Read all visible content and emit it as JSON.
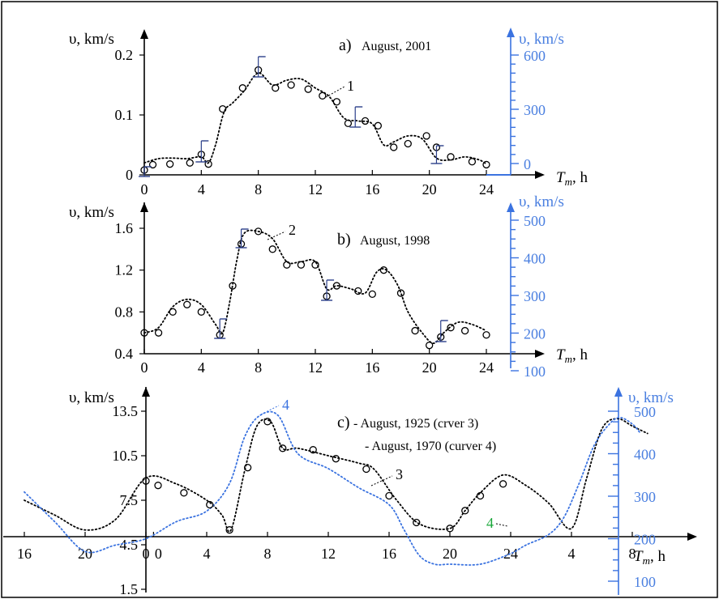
{
  "chart_data": [
    {
      "type": "scatter",
      "panel": "a",
      "title_letter": "a)",
      "title_text": "August, 2001",
      "ylabel": "υ, km/s",
      "ylabel_right": "υ, km/s",
      "xlabel_main": "T",
      "xlabel_sub": "m",
      "xlabel_unit": ", h",
      "xlim": [
        0,
        24
      ],
      "ylim": [
        0,
        0.2
      ],
      "yticks": [
        "0",
        "0.1",
        "0.2"
      ],
      "xticks": [
        "0",
        "4",
        "8",
        "12",
        "16",
        "20",
        "24"
      ],
      "right_yticks": [
        "0",
        "300",
        "600"
      ],
      "right_ylim": [
        0,
        600
      ],
      "curve_label": "1",
      "series": [
        {
          "kind": "points",
          "x": [
            0,
            0.6,
            1.8,
            3.2,
            4,
            4.5,
            5.5,
            6.9,
            8,
            9.2,
            10.3,
            11.5,
            12.5,
            13.5,
            14.3,
            15.5,
            16.4,
            17.5,
            18.5,
            19.8,
            20.5,
            21.5,
            23,
            24
          ],
          "y": [
            0.008,
            0.017,
            0.018,
            0.02,
            0.034,
            0.018,
            0.11,
            0.145,
            0.175,
            0.145,
            0.15,
            0.143,
            0.132,
            0.122,
            0.086,
            0.09,
            0.082,
            0.046,
            0.052,
            0.065,
            0.046,
            0.03,
            0.022,
            0.017
          ]
        },
        {
          "kind": "curve",
          "x": [
            0,
            1,
            2,
            3,
            4,
            4.5,
            5,
            5.6,
            6.2,
            7,
            8,
            9,
            10,
            11,
            12,
            13,
            14,
            15,
            16,
            16.8,
            17.5,
            18.5,
            19.5,
            20.5,
            21.5,
            22.5,
            23.5,
            24
          ],
          "y": [
            0.02,
            0.027,
            0.028,
            0.027,
            0.03,
            0.02,
            0.05,
            0.105,
            0.12,
            0.14,
            0.17,
            0.15,
            0.158,
            0.16,
            0.145,
            0.13,
            0.095,
            0.09,
            0.085,
            0.05,
            0.055,
            0.065,
            0.06,
            0.028,
            0.025,
            0.03,
            0.025,
            0.018
          ]
        }
      ]
    },
    {
      "type": "scatter",
      "panel": "b",
      "title_letter": "b)",
      "title_text": "August,  1998",
      "ylabel": "υ, km/s",
      "ylabel_right": "υ, km/s",
      "xlabel_main": "T",
      "xlabel_sub": "m",
      "xlabel_unit": ", h",
      "xlim": [
        0,
        24
      ],
      "ylim": [
        0.4,
        1.6
      ],
      "yticks": [
        "0.4",
        "0.8",
        "1.2",
        "1.6"
      ],
      "xticks": [
        "0",
        "4",
        "8",
        "12",
        "16",
        "20",
        "24"
      ],
      "right_yticks": [
        "100",
        "200",
        "300",
        "400",
        "500"
      ],
      "right_ylim": [
        100,
        500
      ],
      "curve_label": "2",
      "series": [
        {
          "kind": "points",
          "x": [
            0,
            1,
            2,
            3,
            4,
            5.3,
            6.2,
            6.8,
            8,
            9,
            10,
            11,
            12,
            12.8,
            13.5,
            15,
            16,
            16.8,
            18,
            19,
            20,
            20.8,
            21.5,
            22.5,
            24
          ],
          "y": [
            0.6,
            0.6,
            0.8,
            0.87,
            0.8,
            0.58,
            1.05,
            1.45,
            1.57,
            1.4,
            1.25,
            1.25,
            1.25,
            0.95,
            1.05,
            1.0,
            0.97,
            1.2,
            0.98,
            0.62,
            0.48,
            0.56,
            0.65,
            0.62,
            0.58
          ]
        },
        {
          "kind": "curve",
          "x": [
            0,
            1,
            2,
            3,
            4,
            5,
            5.5,
            6,
            6.5,
            7,
            8,
            9,
            10,
            11,
            12,
            12.8,
            13.5,
            14.5,
            15.5,
            16.3,
            17,
            17.8,
            18.5,
            19.5,
            20.3,
            21,
            22,
            23,
            24
          ],
          "y": [
            0.6,
            0.65,
            0.85,
            0.92,
            0.87,
            0.68,
            0.6,
            0.9,
            1.3,
            1.55,
            1.57,
            1.5,
            1.28,
            1.28,
            1.28,
            1.02,
            1.05,
            1.02,
            0.98,
            1.18,
            1.2,
            1.05,
            0.8,
            0.6,
            0.5,
            0.6,
            0.7,
            0.68,
            0.62
          ]
        }
      ]
    },
    {
      "type": "line",
      "panel": "c",
      "title_letter": "c)",
      "title_line1": "- August,  1925 (crver 3)",
      "title_line2": "- August,  1970 (curver 4)",
      "ylabel": "υ, km/s",
      "ylabel_right": "υ, km/s",
      "xlabel_main": "T",
      "xlabel_sub": "m",
      "xlabel_unit": ", h",
      "xticks": [
        "16",
        "20",
        "0",
        "0",
        "4",
        "8",
        "12",
        "16",
        "20",
        "24",
        "4",
        "8"
      ],
      "yticks": [
        "1.5",
        "4.5",
        "7.5",
        "10.5",
        "13.5"
      ],
      "ylim": [
        1.5,
        13.5
      ],
      "right_yticks": [
        "100",
        "200",
        "300",
        "400",
        "500"
      ],
      "right_ylim": [
        100,
        500
      ],
      "curve3_label": "3",
      "curve4_label_top": "4",
      "curve4_label_bottom": "4",
      "series": [
        {
          "name": "3",
          "kind": "points",
          "x": [
            0,
            0.8,
            2.5,
            4.2,
            5.5,
            6.7,
            8,
            9,
            11,
            12.5,
            14.5,
            16,
            17.8,
            20,
            21,
            22,
            23.5
          ],
          "y": [
            8.8,
            8.5,
            8.0,
            7.2,
            5.5,
            9.7,
            12.8,
            11.0,
            10.9,
            10.3,
            9.6,
            7.8,
            6.0,
            5.6,
            6.8,
            7.8,
            8.6
          ]
        },
        {
          "name": "3",
          "kind": "curve",
          "x": [
            -8,
            -6,
            -4,
            -2,
            0,
            2,
            4,
            5,
            5.6,
            6.5,
            7.3,
            8.2,
            9,
            10,
            12,
            14,
            15,
            16.5,
            18,
            20,
            21,
            22,
            23.5,
            25,
            26.5,
            28,
            29,
            30,
            31,
            32,
            33
          ],
          "y": [
            7.5,
            6.5,
            5.5,
            6.2,
            9.0,
            8.6,
            7.5,
            6.5,
            5.5,
            9.5,
            12.5,
            12.8,
            11.0,
            11.0,
            10.5,
            10.0,
            9.6,
            7.5,
            5.9,
            5.6,
            6.8,
            8.0,
            9.2,
            8.5,
            7.3,
            5.6,
            9.0,
            12.3,
            13.0,
            12.5,
            12.0
          ]
        },
        {
          "name": "4",
          "kind": "curve",
          "axis": "right",
          "x": [
            -8,
            -6,
            -4,
            -2,
            0,
            2,
            4,
            5.5,
            6.5,
            7.5,
            8.7,
            10,
            12,
            14,
            16,
            17,
            18,
            19,
            20,
            22,
            24,
            25,
            26.5,
            27.5,
            28.5,
            29.5,
            30.5,
            31.2,
            32,
            32.5
          ],
          "y": [
            310,
            240,
            170,
            185,
            200,
            240,
            265,
            330,
            440,
            490,
            490,
            400,
            365,
            320,
            280,
            220,
            160,
            140,
            140,
            140,
            165,
            185,
            210,
            250,
            330,
            420,
            470,
            485,
            470,
            450
          ]
        }
      ]
    }
  ]
}
